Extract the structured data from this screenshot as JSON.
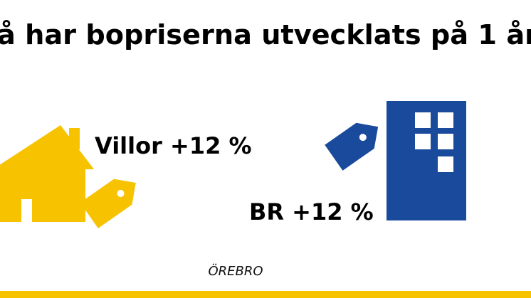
{
  "header": {
    "title": "å har bopriserna utvecklats på 1 år"
  },
  "items": [
    {
      "label": "Villor +12 %"
    },
    {
      "label": "BR +12 %"
    }
  ],
  "footer": {
    "location": "ÖREBRO"
  }
}
